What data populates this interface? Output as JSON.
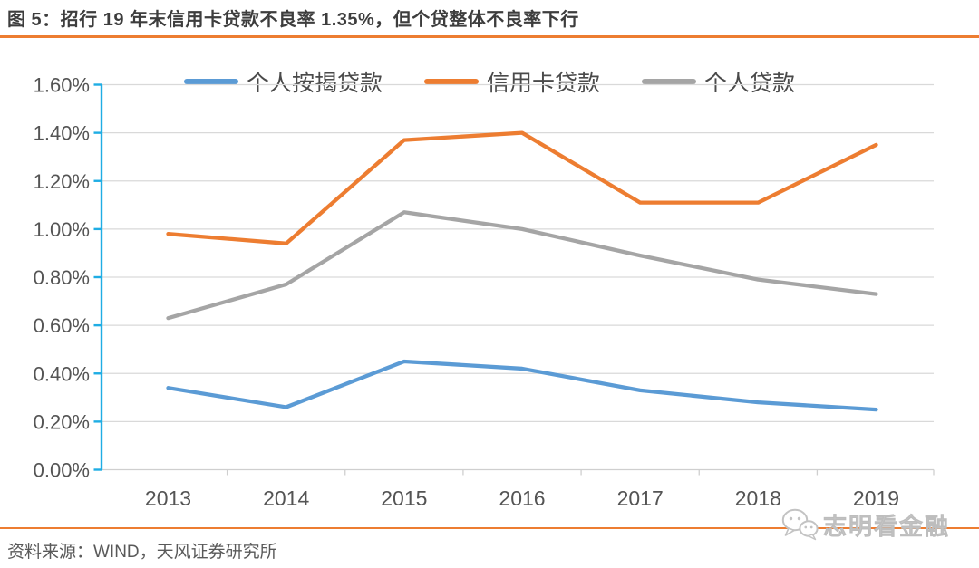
{
  "title": "图 5：招行 19 年末信用卡贷款不良率 1.35%，但个贷整体不良率下行",
  "source_note": "资料来源：WIND，天风证券研究所",
  "watermark": {
    "icon": "wechat-icon",
    "label": "志明看金融"
  },
  "colors": {
    "accent_rule": "#ED7D31",
    "y_axis": "#1FADE4",
    "x_axis": "#CFCFCF",
    "gridline": "#D9D9D9",
    "axis_text": "#545454",
    "title_text": "#3d3d3d",
    "muted_text": "#595959",
    "watermark_text": "#c9c9c9"
  },
  "chart_data": {
    "type": "line",
    "title": "",
    "xlabel": "",
    "ylabel": "",
    "categories": [
      "2013",
      "2014",
      "2015",
      "2016",
      "2017",
      "2018",
      "2019"
    ],
    "series": [
      {
        "name": "个人按揭贷款",
        "color": "#5B9BD5",
        "values": [
          0.34,
          0.26,
          0.45,
          0.42,
          0.33,
          0.28,
          0.25
        ]
      },
      {
        "name": "信用卡贷款",
        "color": "#ED7D31",
        "values": [
          0.98,
          0.94,
          1.37,
          1.4,
          1.11,
          1.11,
          1.35
        ]
      },
      {
        "name": "个人贷款",
        "color": "#A5A5A5",
        "values": [
          0.63,
          0.77,
          1.07,
          1.0,
          0.89,
          0.79,
          0.73
        ]
      }
    ],
    "ylim": [
      0,
      1.6
    ],
    "y_tick_step": 0.2,
    "y_tick_labels": [
      "0.00%",
      "0.20%",
      "0.40%",
      "0.60%",
      "0.80%",
      "1.00%",
      "1.20%",
      "1.40%",
      "1.60%"
    ],
    "grid": true,
    "legend_position": "top",
    "unit": "percent"
  }
}
